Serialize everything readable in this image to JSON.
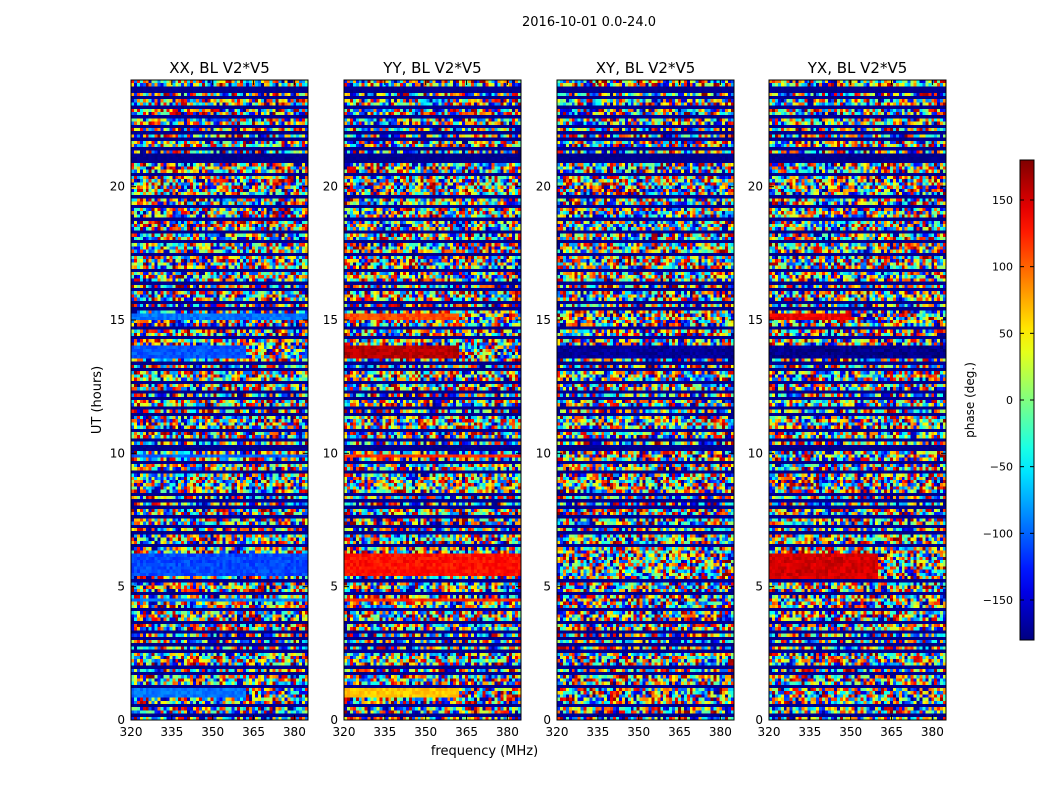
{
  "figure": {
    "suptitle": "2016-10-01 0.0-24.0"
  },
  "chart_data": [
    {
      "type": "heatmap",
      "title": "XX, BL V2*V5",
      "xlabel": "",
      "ylabel": "UT (hours)",
      "xlim": [
        320,
        385
      ],
      "ylim": [
        0,
        24
      ],
      "xticks": [
        320,
        335,
        350,
        365,
        380
      ],
      "yticks": [
        0,
        5,
        10,
        15,
        20
      ],
      "bands": [
        {
          "t0": 0.85,
          "t1": 1.15,
          "f0": 320,
          "f1": 362,
          "phase": -95
        },
        {
          "t0": 4.4,
          "t1": 4.6,
          "f0": 320,
          "f1": 385,
          "phase": -90
        },
        {
          "t0": 5.4,
          "t1": 6.3,
          "f0": 320,
          "f1": 385,
          "phase": -110
        },
        {
          "t0": 9.8,
          "t1": 9.9,
          "f0": 320,
          "f1": 385,
          "phase": -100
        },
        {
          "t0": 13.6,
          "t1": 14.1,
          "f0": 320,
          "f1": 362,
          "phase": -105
        },
        {
          "t0": 15.0,
          "t1": 15.2,
          "f0": 320,
          "f1": 385,
          "phase": -95
        }
      ]
    },
    {
      "type": "heatmap",
      "title": "YY, BL V2*V5",
      "xlabel": "frequency (MHz)",
      "ylabel": "",
      "xlim": [
        320,
        385
      ],
      "ylim": [
        0,
        24
      ],
      "xticks": [
        320,
        335,
        350,
        365,
        380
      ],
      "yticks": [
        0,
        5,
        10,
        15,
        20
      ],
      "bands": [
        {
          "t0": 0.85,
          "t1": 1.15,
          "f0": 320,
          "f1": 362,
          "phase": 65
        },
        {
          "t0": 4.4,
          "t1": 4.6,
          "f0": 320,
          "f1": 385,
          "phase": 120
        },
        {
          "t0": 5.4,
          "t1": 6.3,
          "f0": 320,
          "f1": 385,
          "phase": 130
        },
        {
          "t0": 9.8,
          "t1": 9.9,
          "f0": 320,
          "f1": 385,
          "phase": 120
        },
        {
          "t0": 13.6,
          "t1": 14.1,
          "f0": 320,
          "f1": 362,
          "phase": 160
        },
        {
          "t0": 15.0,
          "t1": 15.2,
          "f0": 320,
          "f1": 362,
          "phase": 110
        }
      ]
    },
    {
      "type": "heatmap",
      "title": "XY, BL V2*V5",
      "xlabel": "",
      "ylabel": "",
      "xlim": [
        320,
        385
      ],
      "ylim": [
        0,
        24
      ],
      "xticks": [
        320,
        335,
        350,
        365,
        380
      ],
      "yticks": [
        0,
        5,
        10,
        15,
        20
      ],
      "bands": [
        {
          "t0": 13.6,
          "t1": 14.1,
          "f0": 320,
          "f1": 385,
          "phase": -170
        }
      ]
    },
    {
      "type": "heatmap",
      "title": "YX, BL V2*V5",
      "xlabel": "",
      "ylabel": "",
      "xlim": [
        320,
        385
      ],
      "ylim": [
        0,
        24
      ],
      "xticks": [
        320,
        335,
        350,
        365,
        380
      ],
      "yticks": [
        0,
        5,
        10,
        15,
        20
      ],
      "bands": [
        {
          "t0": 5.3,
          "t1": 6.2,
          "f0": 320,
          "f1": 360,
          "phase": 150
        },
        {
          "t0": 13.6,
          "t1": 14.1,
          "f0": 320,
          "f1": 385,
          "phase": -175
        },
        {
          "t0": 15.0,
          "t1": 15.2,
          "f0": 320,
          "f1": 350,
          "phase": 140
        }
      ]
    }
  ],
  "colorbar": {
    "label": "phase (deg.)",
    "range": [
      -180,
      180
    ],
    "ticks": [
      150,
      100,
      50,
      0,
      -50,
      -100,
      -150
    ],
    "tick_labels": [
      "150",
      "100",
      "50",
      "0",
      "−50",
      "−100",
      "−150"
    ],
    "colormap": "jet"
  },
  "rows": {
    "count": 200,
    "flag_hours": [
      0.15,
      0.5,
      1.3,
      1.7,
      2.0,
      2.6,
      2.8,
      3.05,
      3.3,
      3.6,
      4.1,
      4.7,
      5.2,
      6.6,
      7.0,
      7.3,
      7.65,
      7.95,
      8.2,
      8.4,
      9.3,
      9.6,
      10.1,
      10.3,
      10.55,
      10.9,
      11.4,
      11.7,
      12.1,
      12.35,
      12.7,
      13.1,
      13.4,
      14.3,
      14.7,
      15.4,
      15.7,
      16.1,
      16.4,
      16.9,
      17.5,
      17.9,
      18.3,
      18.8,
      19.2,
      19.6,
      20.4,
      20.9,
      21.05,
      21.2,
      21.45,
      21.75,
      22.05,
      22.3,
      22.6,
      22.95,
      23.3,
      23.55,
      23.75
    ]
  }
}
